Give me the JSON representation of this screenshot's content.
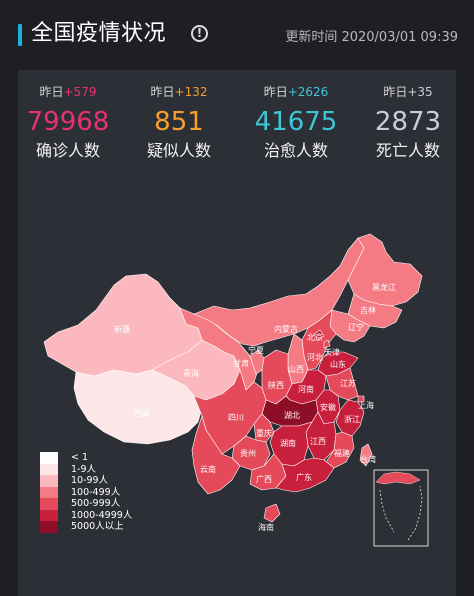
{
  "header": {
    "title": "全国疫情状况",
    "info_icon": "info-icon",
    "info_symbol": "!",
    "updated": "更新时间 2020/03/01 09:39"
  },
  "stats": [
    {
      "delta_label": "昨日",
      "delta": "+579",
      "value": "79968",
      "label": "确诊人数",
      "color": "#e8326b"
    },
    {
      "delta_label": "昨日",
      "delta": "+132",
      "value": "851",
      "label": "疑似人数",
      "color": "#f59f2c"
    },
    {
      "delta_label": "昨日",
      "delta": "+2626",
      "value": "41675",
      "label": "治愈人数",
      "color": "#3ec6d6"
    },
    {
      "delta_label": "昨日",
      "delta": "+35",
      "value": "2873",
      "label": "死亡人数",
      "color": "#c9cdd6"
    }
  ],
  "legend": [
    {
      "label": "< 1",
      "color": "#ffffff"
    },
    {
      "label": "1-9人",
      "color": "#fde6e8"
    },
    {
      "label": "10-99人",
      "color": "#fbb8be"
    },
    {
      "label": "100-499人",
      "color": "#f47a84"
    },
    {
      "label": "500-999人",
      "color": "#e44a5a"
    },
    {
      "label": "1000-4999人",
      "color": "#c81f3d"
    },
    {
      "label": "5000人以上",
      "color": "#8e0d27"
    }
  ],
  "map_labels": {
    "heilongjiang": "黑龙江",
    "jilin": "吉林",
    "liaoning": "辽宁",
    "neimenggu": "内蒙古",
    "beijing": "北京",
    "tianjin": "天津",
    "hebei": "河北",
    "shandong": "山东",
    "shanxi": "山西",
    "shaanxi": "陕西",
    "ningxia": "宁夏",
    "gansu": "甘肃",
    "qinghai": "青海",
    "xinjiang": "新疆",
    "xizang": "西藏",
    "sichuan": "四川",
    "chongqing": "重庆",
    "hubei": "湖北",
    "henan": "河南",
    "anhui": "安徽",
    "jiangsu": "江苏",
    "shanghai": "上海",
    "zhejiang": "浙江",
    "jiangxi": "江西",
    "hunan": "湖南",
    "fujian": "福建",
    "guizhou": "贵州",
    "yunnan": "云南",
    "guangxi": "广西",
    "guangdong": "广东",
    "taiwan": "台湾",
    "hainan": "海南"
  }
}
